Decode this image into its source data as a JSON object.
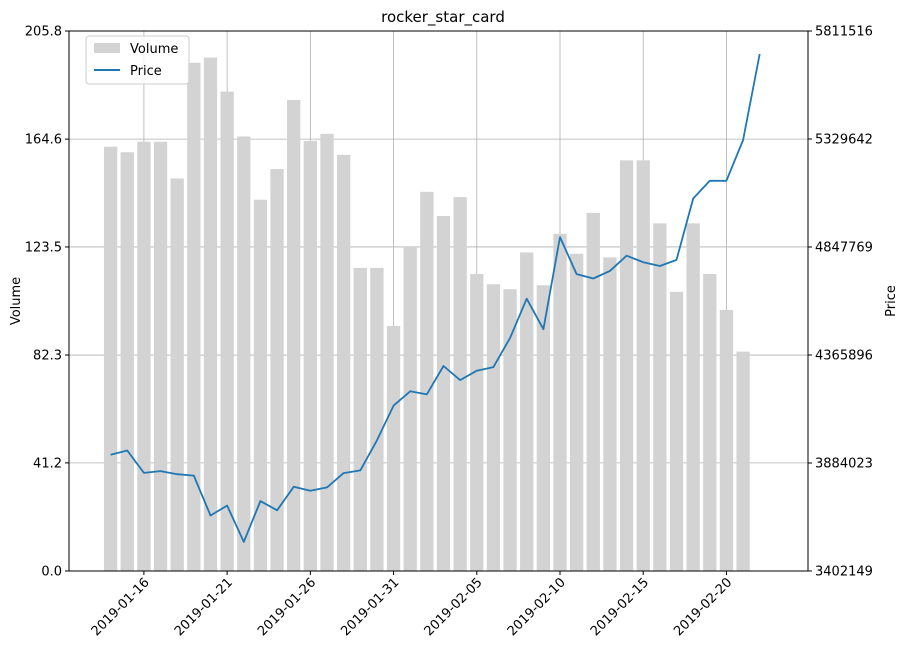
{
  "chart_data": {
    "type": "bar",
    "title": "rocker_star_card",
    "xlabel": "",
    "ylabel": "Volume",
    "y2label": "Price",
    "ylim": [
      0,
      205.8
    ],
    "y2lim": [
      3402149,
      5811516
    ],
    "yticks": [
      "0.0",
      "41.2",
      "82.3",
      "123.5",
      "164.6",
      "205.8"
    ],
    "y2ticks": [
      "3402149",
      "3884023",
      "4365896",
      "4847769",
      "5329642",
      "5811516"
    ],
    "xticks": [
      "2019-01-16",
      "2019-01-21",
      "2019-01-26",
      "2019-01-31",
      "2019-02-05",
      "2019-02-10",
      "2019-02-15",
      "2019-02-20"
    ],
    "grid": true,
    "legend_position": "top-left",
    "x": [
      "2019-01-14",
      "2019-01-15",
      "2019-01-16",
      "2019-01-17",
      "2019-01-18",
      "2019-01-19",
      "2019-01-20",
      "2019-01-21",
      "2019-01-22",
      "2019-01-23",
      "2019-01-24",
      "2019-01-25",
      "2019-01-26",
      "2019-01-27",
      "2019-01-28",
      "2019-01-29",
      "2019-01-30",
      "2019-01-31",
      "2019-02-01",
      "2019-02-02",
      "2019-02-03",
      "2019-02-04",
      "2019-02-05",
      "2019-02-06",
      "2019-02-07",
      "2019-02-08",
      "2019-02-09",
      "2019-02-10",
      "2019-02-11",
      "2019-02-12",
      "2019-02-13",
      "2019-02-14",
      "2019-02-15",
      "2019-02-16",
      "2019-02-17",
      "2019-02-18",
      "2019-02-19",
      "2019-02-20",
      "2019-02-21",
      "2019-02-22"
    ],
    "series": [
      {
        "name": "Volume",
        "kind": "bar",
        "axis": "left",
        "color": "#d3d3d3",
        "values": [
          161.7,
          159.6,
          163.6,
          163.6,
          149.6,
          193.7,
          195.7,
          182.7,
          165.6,
          141.5,
          153.2,
          179.5,
          163.9,
          166.6,
          158.6,
          115.5,
          115.5,
          93.4,
          123.5,
          144.5,
          135.3,
          142.5,
          113.2,
          109.3,
          107.4,
          121.4,
          108.9,
          128.5,
          120.9,
          136.5,
          119.5,
          156.5,
          156.5,
          132.5,
          106.4,
          132.5,
          113.2,
          99.5,
          83.6,
          null
        ]
      },
      {
        "name": "Price",
        "kind": "line",
        "axis": "right",
        "color": "#1f77b4",
        "values": [
          3921000,
          3940000,
          3840000,
          3848000,
          3834000,
          3828000,
          3650000,
          3694000,
          3532000,
          3714000,
          3673000,
          3778000,
          3760000,
          3775000,
          3839000,
          3851000,
          3985000,
          4140000,
          4204000,
          4190000,
          4317000,
          4254000,
          4296000,
          4312000,
          4442000,
          4617000,
          4481000,
          4892000,
          4727000,
          4707000,
          4741000,
          4809000,
          4780000,
          4763000,
          4790000,
          5064000,
          5143000,
          5143000,
          5325000,
          5709000
        ]
      }
    ]
  }
}
